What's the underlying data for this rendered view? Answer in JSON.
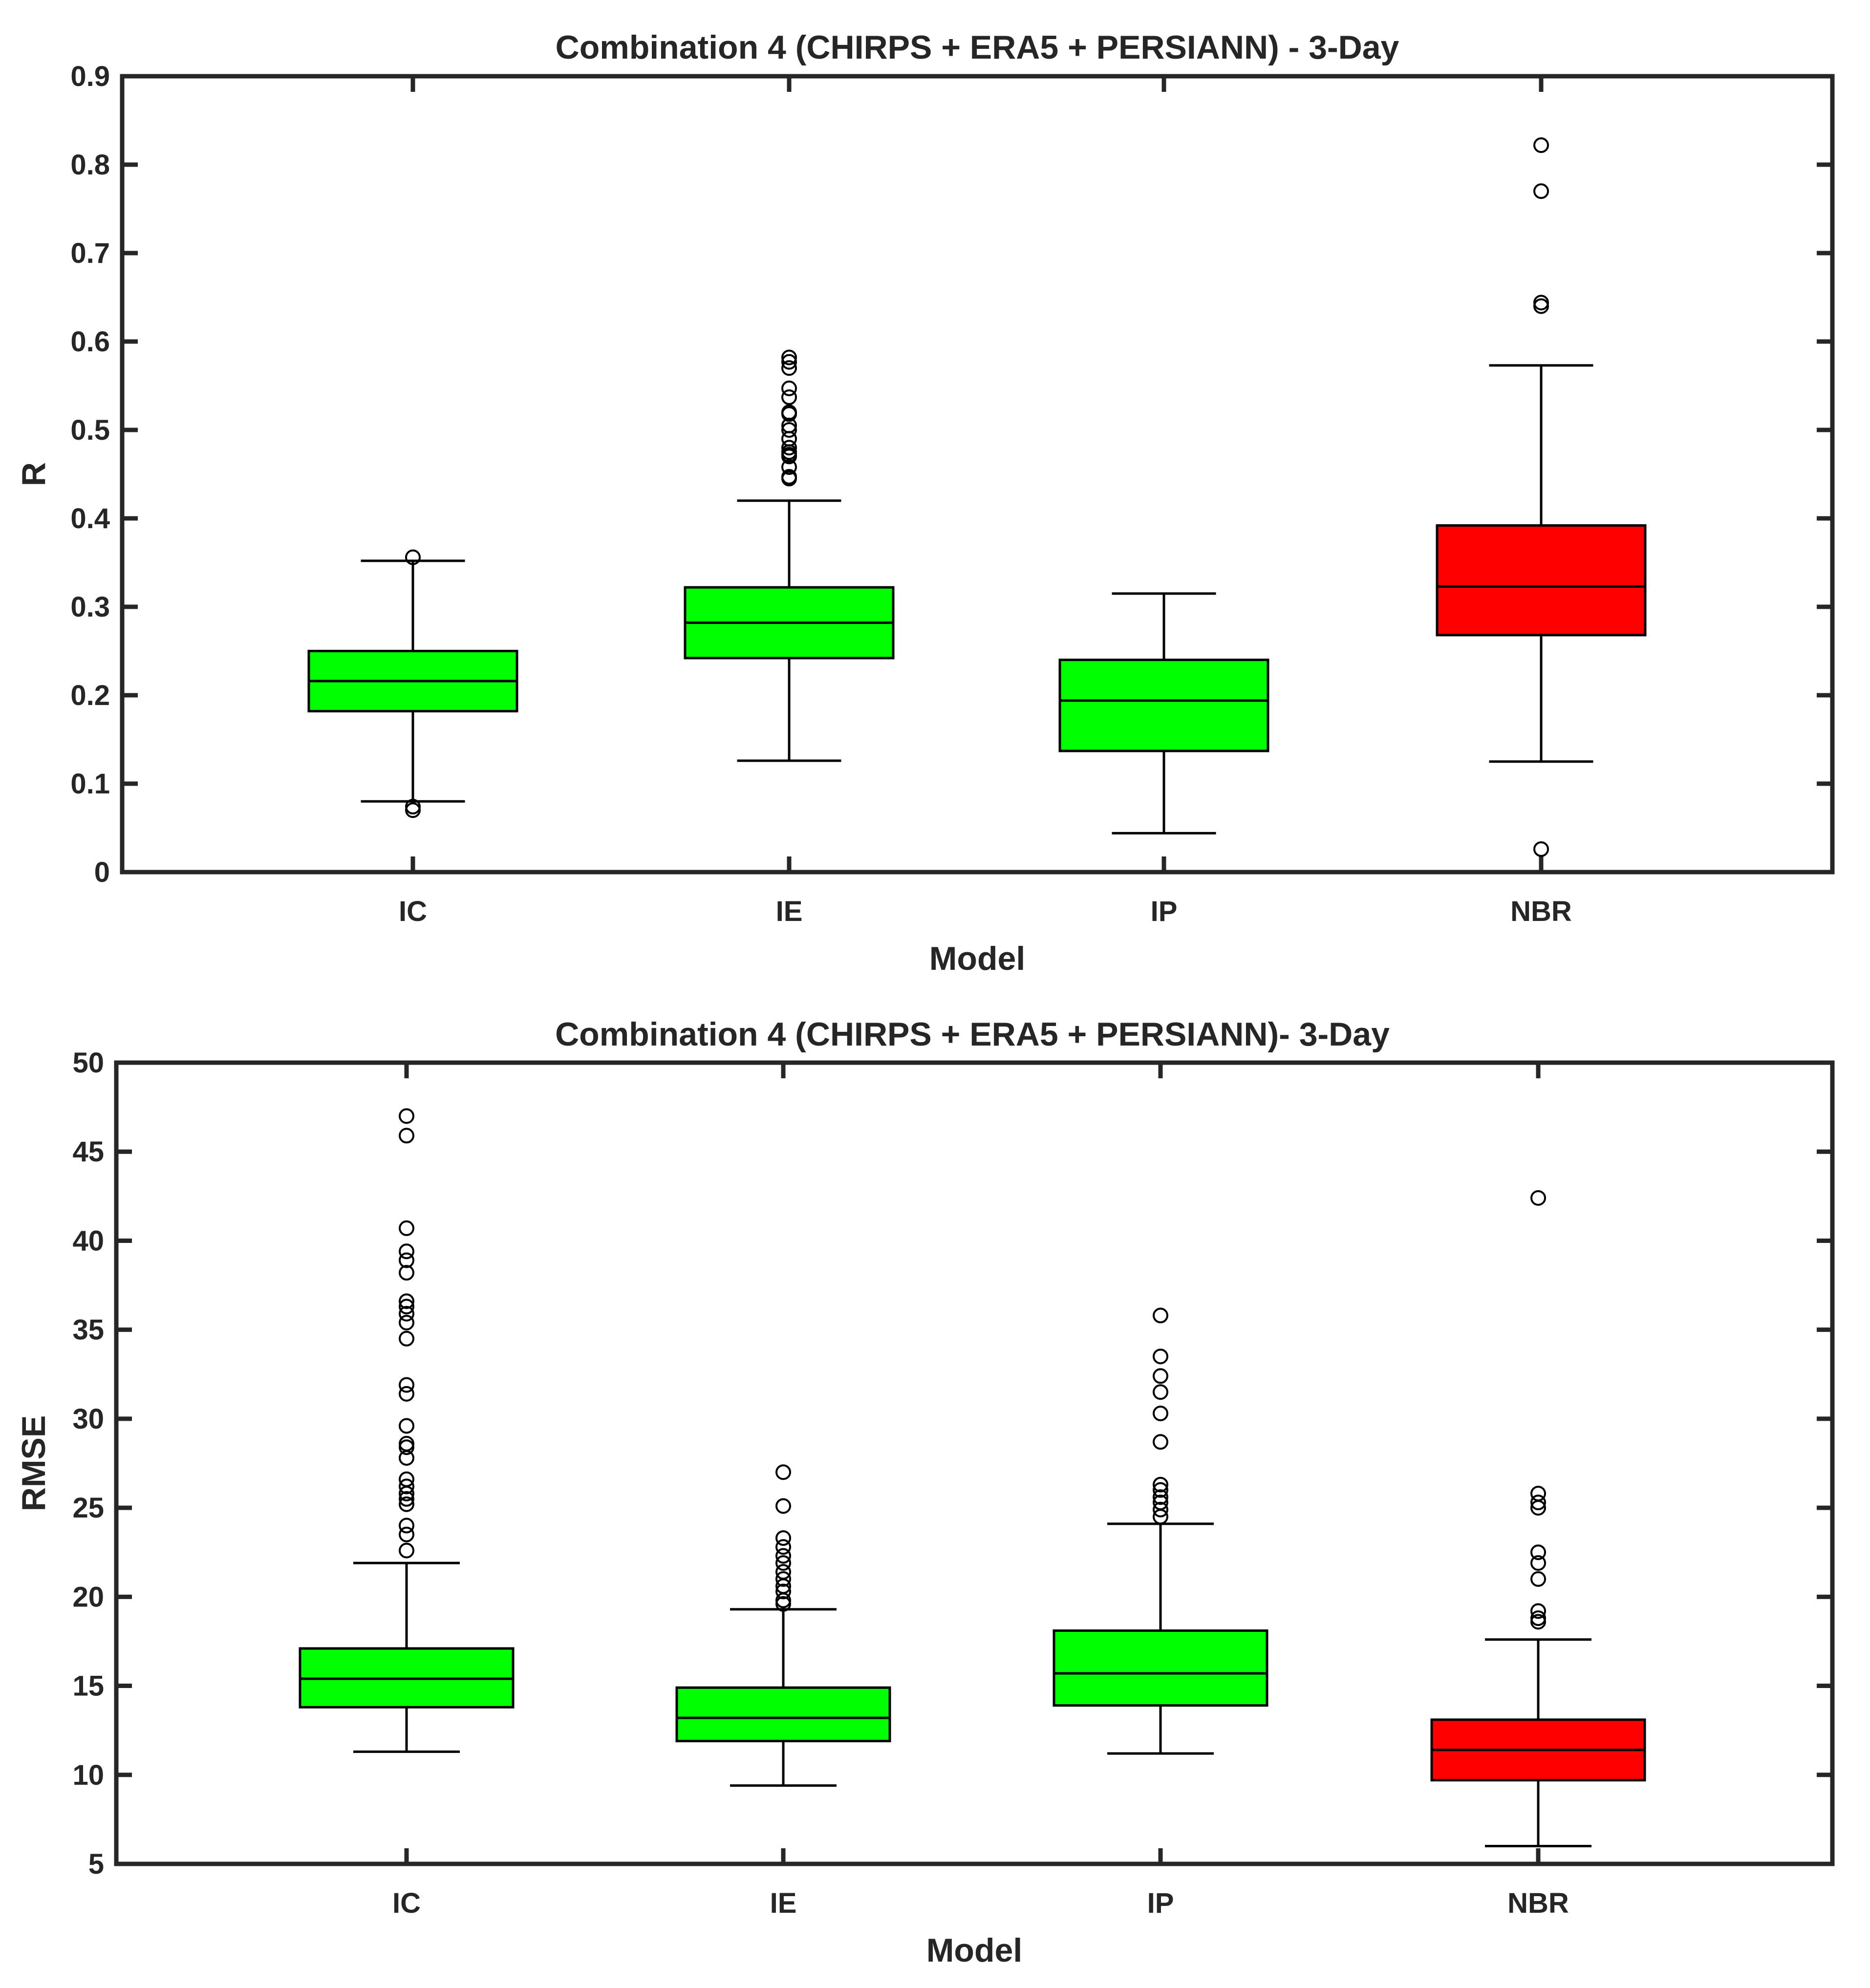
{
  "chart_data": [
    {
      "type": "box",
      "title": "Combination 4 (CHIRPS + ERA5 + PERSIANN) - 3-Day",
      "xlabel": "Model",
      "ylabel": "R",
      "ylim": [
        0,
        0.9
      ],
      "yticks": [
        "0",
        "0.1",
        "0.2",
        "0.3",
        "0.4",
        "0.5",
        "0.6",
        "0.7",
        "0.8",
        "0.9"
      ],
      "categories": [
        "IC",
        "IE",
        "IP",
        "NBR"
      ],
      "boxes": [
        {
          "q1": 0.182,
          "median": 0.216,
          "q3": 0.25,
          "whisker_low": 0.08,
          "whisker_high": 0.352,
          "color": "#00ff00",
          "outliers": [
            0.356,
            0.074,
            0.07
          ]
        },
        {
          "q1": 0.242,
          "median": 0.282,
          "q3": 0.322,
          "whisker_low": 0.126,
          "whisker_high": 0.42,
          "color": "#00ff00",
          "outliers": [
            0.445,
            0.447,
            0.458,
            0.47,
            0.472,
            0.475,
            0.48,
            0.49,
            0.5,
            0.505,
            0.518,
            0.52,
            0.537,
            0.547,
            0.57,
            0.577,
            0.582
          ]
        },
        {
          "q1": 0.137,
          "median": 0.194,
          "q3": 0.24,
          "whisker_low": 0.044,
          "whisker_high": 0.315,
          "color": "#00ff00",
          "outliers": []
        },
        {
          "q1": 0.268,
          "median": 0.323,
          "q3": 0.392,
          "whisker_low": 0.125,
          "whisker_high": 0.573,
          "color": "#ff0000",
          "outliers": [
            0.026,
            0.64,
            0.644,
            0.77,
            0.822
          ]
        }
      ]
    },
    {
      "type": "box",
      "title": "Combination 4 (CHIRPS + ERA5 + PERSIANN)- 3-Day",
      "xlabel": "Model",
      "ylabel": "RMSE",
      "ylim": [
        5,
        50
      ],
      "yticks": [
        "5",
        "10",
        "15",
        "20",
        "25",
        "30",
        "35",
        "40",
        "45",
        "50"
      ],
      "categories": [
        "IC",
        "IE",
        "IP",
        "NBR"
      ],
      "boxes": [
        {
          "q1": 13.8,
          "median": 15.4,
          "q3": 17.1,
          "whisker_low": 11.3,
          "whisker_high": 21.9,
          "color": "#00ff00",
          "outliers": [
            22.6,
            23.5,
            24.0,
            25.2,
            25.5,
            25.8,
            26.2,
            26.6,
            27.8,
            28.4,
            28.6,
            29.6,
            31.4,
            31.9,
            34.5,
            35.4,
            35.9,
            36.3,
            36.6,
            38.2,
            38.9,
            39.4,
            40.7,
            45.9,
            47.0
          ]
        },
        {
          "q1": 11.9,
          "median": 13.2,
          "q3": 14.9,
          "whisker_low": 9.4,
          "whisker_high": 19.3,
          "color": "#00ff00",
          "outliers": [
            19.6,
            19.8,
            20.3,
            20.6,
            21.0,
            21.4,
            21.9,
            22.3,
            22.8,
            23.3,
            25.1,
            27.0
          ]
        },
        {
          "q1": 13.9,
          "median": 15.7,
          "q3": 18.1,
          "whisker_low": 11.2,
          "whisker_high": 24.1,
          "color": "#00ff00",
          "outliers": [
            24.5,
            24.9,
            25.3,
            25.6,
            26.0,
            26.3,
            28.7,
            30.3,
            31.5,
            32.4,
            33.5,
            35.8
          ]
        },
        {
          "q1": 9.7,
          "median": 11.4,
          "q3": 13.1,
          "whisker_low": 6.0,
          "whisker_high": 17.6,
          "color": "#ff0000",
          "outliers": [
            18.6,
            18.8,
            19.2,
            21.0,
            21.9,
            22.5,
            25.0,
            25.3,
            25.8,
            42.4
          ]
        }
      ]
    }
  ]
}
